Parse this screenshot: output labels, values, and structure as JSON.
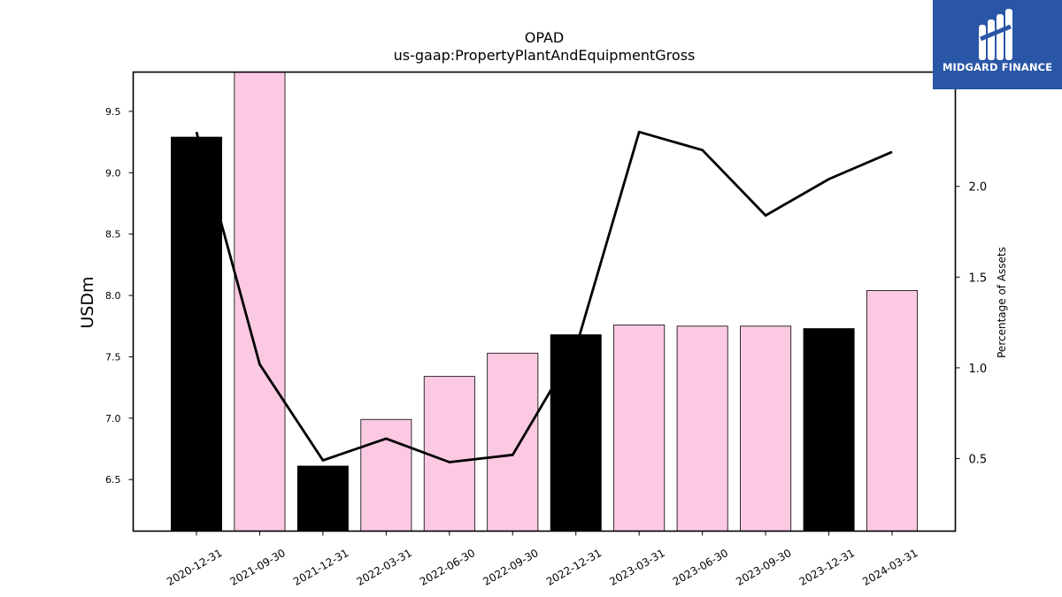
{
  "logo": {
    "text": "MIDGARD FINANCE",
    "background": "#2a56a7"
  },
  "chart_data": {
    "type": "bar",
    "title": "OPAD",
    "subtitle": "us-gaap:PropertyPlantAndEquipmentGross",
    "ylabel": "USDm",
    "y2label": "Percentage of Assets",
    "ylim": [
      6.08,
      9.82
    ],
    "y2lim": [
      0.1,
      2.63
    ],
    "yticks": [
      "6.5",
      "7.0",
      "7.5",
      "8.0",
      "8.5",
      "9.0",
      "9.5"
    ],
    "y2ticks": [
      "0.5",
      "1.0",
      "1.5",
      "2.0"
    ],
    "categories": [
      "2020-12-31",
      "2021-09-30",
      "2021-12-31",
      "2022-03-31",
      "2022-06-30",
      "2022-09-30",
      "2022-12-31",
      "2023-03-31",
      "2023-06-30",
      "2023-09-30",
      "2023-12-31",
      "2024-03-31"
    ],
    "bars": {
      "values": [
        9.29,
        9.82,
        6.61,
        6.99,
        7.34,
        7.53,
        7.68,
        7.76,
        7.75,
        7.75,
        7.73,
        8.04
      ],
      "colors": [
        "#000000",
        "#fcc9e3",
        "#000000",
        "#fcc9e3",
        "#fcc9e3",
        "#fcc9e3",
        "#000000",
        "#fcc9e3",
        "#fcc9e3",
        "#fcc9e3",
        "#000000",
        "#fcc9e3"
      ]
    },
    "line": {
      "values": [
        2.3,
        1.02,
        0.49,
        0.61,
        0.48,
        0.52,
        1.11,
        2.3,
        2.2,
        1.84,
        2.04,
        2.19
      ],
      "color": "#000000"
    },
    "grid": false,
    "legend": "none"
  }
}
